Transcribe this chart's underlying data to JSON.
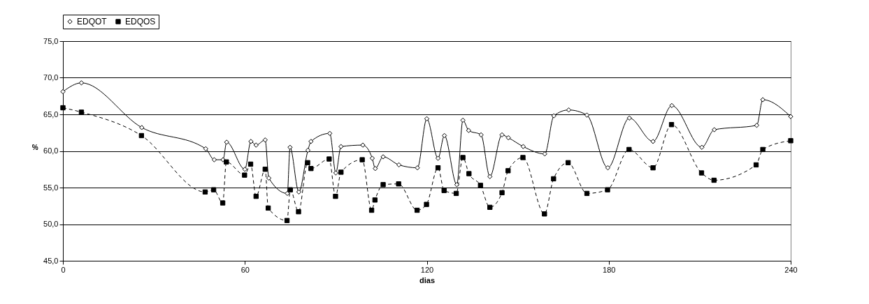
{
  "chart_data": {
    "type": "line",
    "xlabel": "dias",
    "ylabel": "%",
    "xlim": [
      0,
      240
    ],
    "xticks": [
      0,
      60,
      120,
      180,
      240
    ],
    "ylim": [
      45,
      75
    ],
    "yticks": [
      {
        "value": 45,
        "label": "45,0"
      },
      {
        "value": 50,
        "label": "50,0"
      },
      {
        "value": 55,
        "label": "55,0"
      },
      {
        "value": 60,
        "label": "60,0"
      },
      {
        "value": 65,
        "label": "65,0"
      },
      {
        "value": 70,
        "label": "70,0"
      },
      {
        "value": 75,
        "label": "75,0"
      }
    ],
    "grid": "y",
    "legend": "top",
    "series": [
      {
        "name": "EDQOT",
        "color": "#000000",
        "marker": "diamond",
        "line_style": "solid",
        "x": [
          0,
          6.1,
          26.0,
          47.1,
          49.9,
          52.8,
          54.0,
          60.0,
          62.0,
          63.7,
          66.7,
          67.9,
          74.0,
          74.9,
          77.8,
          80.8,
          81.8,
          88.0,
          90.0,
          91.7,
          98.9,
          102.0,
          103.0,
          105.6,
          110.8,
          116.9,
          120.0,
          123.7,
          125.8,
          129.9,
          131.9,
          133.8,
          137.9,
          140.8,
          144.8,
          146.9,
          151.8,
          158.9,
          161.9,
          166.8,
          172.8,
          179.7,
          186.8,
          194.6,
          200.8,
          210.7,
          214.8,
          228.8,
          230.8,
          240
        ],
        "values": [
          68.1,
          69.3,
          63.2,
          60.3,
          58.8,
          58.8,
          61.2,
          57.5,
          61.3,
          60.8,
          61.5,
          56.3,
          54.2,
          60.5,
          54.4,
          60.1,
          61.3,
          62.4,
          57.0,
          60.6,
          60.8,
          59.0,
          57.6,
          59.2,
          58.1,
          57.7,
          64.4,
          59.0,
          62.1,
          55.4,
          64.2,
          62.8,
          62.2,
          56.5,
          62.2,
          61.8,
          60.6,
          59.6,
          64.8,
          65.6,
          64.9,
          57.7,
          64.5,
          61.3,
          66.2,
          60.5,
          62.9,
          63.5,
          67.0,
          64.7
        ]
      },
      {
        "name": "EDQOS",
        "color": "#000000",
        "marker": "square",
        "line_style": "dashed",
        "x": [
          0,
          6.1,
          25.9,
          46.9,
          49.7,
          52.7,
          53.9,
          59.9,
          61.9,
          63.7,
          66.7,
          67.7,
          73.9,
          75.0,
          77.7,
          80.7,
          81.8,
          87.8,
          89.9,
          91.7,
          98.7,
          101.8,
          102.9,
          105.6,
          110.7,
          116.8,
          119.9,
          123.7,
          125.7,
          129.7,
          131.9,
          133.9,
          137.7,
          140.8,
          144.8,
          146.8,
          151.7,
          158.8,
          161.8,
          166.6,
          172.8,
          179.6,
          186.7,
          194.6,
          200.7,
          210.6,
          214.7,
          228.6,
          230.8,
          240
        ],
        "values": [
          65.9,
          65.3,
          62.1,
          54.4,
          54.7,
          52.9,
          58.5,
          56.7,
          58.2,
          53.8,
          57.5,
          52.2,
          50.5,
          54.7,
          51.7,
          58.4,
          57.6,
          58.9,
          53.8,
          57.1,
          58.8,
          51.9,
          53.3,
          55.4,
          55.5,
          51.9,
          52.7,
          57.7,
          54.6,
          54.2,
          59.1,
          56.9,
          55.3,
          52.3,
          54.3,
          57.3,
          59.1,
          51.4,
          56.2,
          58.4,
          54.2,
          54.7,
          60.2,
          57.7,
          63.6,
          57.0,
          56.0,
          58.1,
          60.2,
          61.4
        ]
      }
    ]
  }
}
